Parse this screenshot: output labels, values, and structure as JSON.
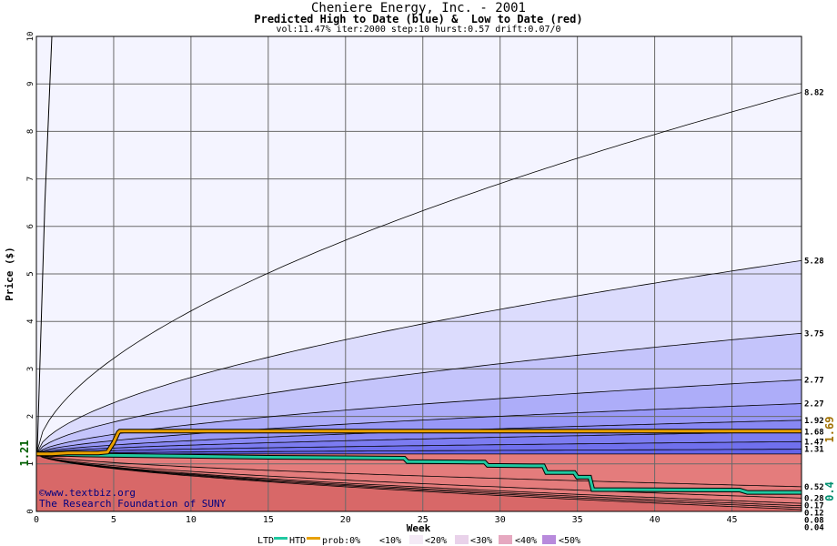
{
  "header": {
    "title": "Cheniere Energy, Inc. - 2001",
    "subtitle": "Predicted High to Date (blue) &  Low to Date (red)",
    "params": "vol:11.47% iter:2000 step:10 hurst:0.57 drift:0.07/0"
  },
  "watermark": {
    "line1": "©www.textbiz.org",
    "line2": "The Research Foundation of SUNY"
  },
  "legend": {
    "ltd": "LTD",
    "htd": "HTD",
    "prob": "prob:0%",
    "b10": "<10%",
    "b20": "<20%",
    "b30": "<30%",
    "b40": "<40%",
    "b50": "<50%"
  },
  "chart_data": {
    "type": "area",
    "title": "Cheniere Energy, Inc. - 2001",
    "subtitle": "Predicted High to Date (blue) &  Low to Date (red)",
    "xlabel": "Week",
    "ylabel": "Price ($)",
    "xlim": [
      0,
      49.5
    ],
    "ylim": [
      0,
      10
    ],
    "x_ticks": [
      0,
      5,
      10,
      15,
      20,
      25,
      30,
      35,
      40,
      45
    ],
    "y_ticks": [
      0,
      1,
      2,
      3,
      4,
      5,
      6,
      7,
      8,
      9,
      10
    ],
    "grid": true,
    "start_price": 1.21,
    "start_price_label": "1.21",
    "high_to_date_quantiles": [
      {
        "end": 8.82,
        "label": "8.82"
      },
      {
        "end": 5.28,
        "label": "5.28"
      },
      {
        "end": 3.75,
        "label": "3.75"
      },
      {
        "end": 2.77,
        "label": "2.77"
      },
      {
        "end": 2.27,
        "label": "2.27"
      },
      {
        "end": 1.92,
        "label": "1.92"
      },
      {
        "end": 1.68,
        "label": "1.68"
      },
      {
        "end": 1.47,
        "label": "1.47"
      },
      {
        "end": 1.31,
        "label": "1.31"
      }
    ],
    "low_to_date_quantiles": [
      {
        "end": 0.52,
        "label": "0.52"
      },
      {
        "end": 0.28,
        "label": "0.28"
      },
      {
        "end": 0.17,
        "label": "0.17"
      },
      {
        "end": 0.12,
        "label": "0.12"
      },
      {
        "end": 0.08,
        "label": "0.08"
      },
      {
        "end": 0.04,
        "label": "0.04"
      }
    ],
    "actual_high_to_date": {
      "name": "HTD",
      "x": [
        0,
        1,
        2,
        3,
        4,
        4.6,
        5.0,
        5.3,
        5.4,
        10,
        20,
        30,
        40,
        49.5
      ],
      "y": [
        1.21,
        1.21,
        1.23,
        1.23,
        1.23,
        1.25,
        1.45,
        1.66,
        1.69,
        1.69,
        1.69,
        1.69,
        1.69,
        1.69
      ],
      "end_label": "1.69",
      "color": "#e8a000"
    },
    "actual_low_to_date": {
      "name": "LTD",
      "x": [
        0,
        1,
        2,
        3,
        5,
        10,
        15,
        20,
        23.8,
        24,
        28,
        29,
        29.2,
        32,
        32.8,
        33,
        34.8,
        35,
        35.8,
        36,
        45.5,
        46,
        49.5
      ],
      "y": [
        1.21,
        1.2,
        1.2,
        1.19,
        1.18,
        1.16,
        1.14,
        1.13,
        1.12,
        1.05,
        1.04,
        1.04,
        0.97,
        0.96,
        0.96,
        0.82,
        0.82,
        0.72,
        0.72,
        0.46,
        0.45,
        0.4,
        0.4
      ],
      "end_label": "0.4",
      "color": "#20c8a0"
    },
    "legend_bins": [
      "0%",
      "<10%",
      "<20%",
      "<30%",
      "<40%",
      "<50%"
    ]
  },
  "colors": {
    "plot_bg": "#f4f4ff",
    "blue_bands": [
      "#f4f4ff",
      "#dcdcfd",
      "#c4c4fb",
      "#adadf9",
      "#9898f7",
      "#8888f4",
      "#7c7cf1",
      "#7070ee",
      "#6464ea"
    ],
    "red_bands": [
      "#fff0f0",
      "#fbdcdc",
      "#f6c2c2",
      "#f2aaaa",
      "#ec9494",
      "#e47c7c",
      "#d86868"
    ],
    "grid": "#6a6a6a",
    "htd_line": "#e8a000",
    "ltd_line": "#20c8a0",
    "htd_label": "#a07000",
    "ltd_label": "#009070",
    "start_label": "#006000"
  }
}
